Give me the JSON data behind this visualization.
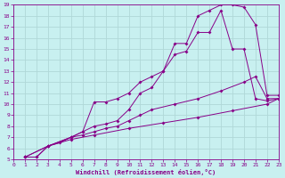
{
  "xlabel": "Windchill (Refroidissement éolien,°C)",
  "bg_color": "#c8f0f0",
  "grid_color": "#b0d8d8",
  "line_color": "#880088",
  "xlim": [
    0,
    23
  ],
  "ylim": [
    5,
    19
  ],
  "xticks": [
    0,
    1,
    2,
    3,
    4,
    5,
    6,
    7,
    8,
    9,
    10,
    11,
    12,
    13,
    14,
    15,
    16,
    17,
    18,
    19,
    20,
    21,
    22,
    23
  ],
  "yticks": [
    5,
    6,
    7,
    8,
    9,
    10,
    11,
    12,
    13,
    14,
    15,
    16,
    17,
    18,
    19
  ],
  "line1_x": [
    1,
    2,
    3,
    5,
    6,
    7,
    8,
    9,
    10,
    11,
    12,
    13,
    14,
    15,
    16,
    17,
    18,
    19,
    20,
    21,
    22,
    23
  ],
  "line1_y": [
    5.2,
    5.2,
    6.2,
    7.0,
    7.5,
    10.2,
    10.2,
    10.5,
    11.0,
    12.0,
    12.5,
    13.0,
    15.5,
    15.5,
    18.0,
    18.5,
    19.0,
    19.0,
    18.8,
    17.2,
    10.8,
    10.8
  ],
  "line2_x": [
    1,
    2,
    3,
    4,
    5,
    6,
    7,
    8,
    9,
    10,
    11,
    12,
    13,
    14,
    15,
    16,
    17,
    18,
    19,
    20,
    21,
    22,
    23
  ],
  "line2_y": [
    5.2,
    5.2,
    6.2,
    6.5,
    7.0,
    7.5,
    8.0,
    8.2,
    8.5,
    9.5,
    11.0,
    11.5,
    13.0,
    14.5,
    14.8,
    16.5,
    16.5,
    18.5,
    15.0,
    15.0,
    10.5,
    10.3,
    10.5
  ],
  "line3_x": [
    1,
    3,
    5,
    6,
    7,
    8,
    9,
    10,
    11,
    12,
    14,
    16,
    18,
    20,
    21,
    22,
    23
  ],
  "line3_y": [
    5.2,
    6.2,
    7.0,
    7.2,
    7.5,
    7.8,
    8.0,
    8.5,
    9.0,
    9.5,
    10.0,
    10.5,
    11.2,
    12.0,
    12.5,
    10.5,
    10.5
  ],
  "line4_x": [
    1,
    3,
    5,
    7,
    10,
    13,
    16,
    19,
    22,
    23
  ],
  "line4_y": [
    5.2,
    6.2,
    6.8,
    7.2,
    7.8,
    8.3,
    8.8,
    9.4,
    10.0,
    10.5
  ]
}
